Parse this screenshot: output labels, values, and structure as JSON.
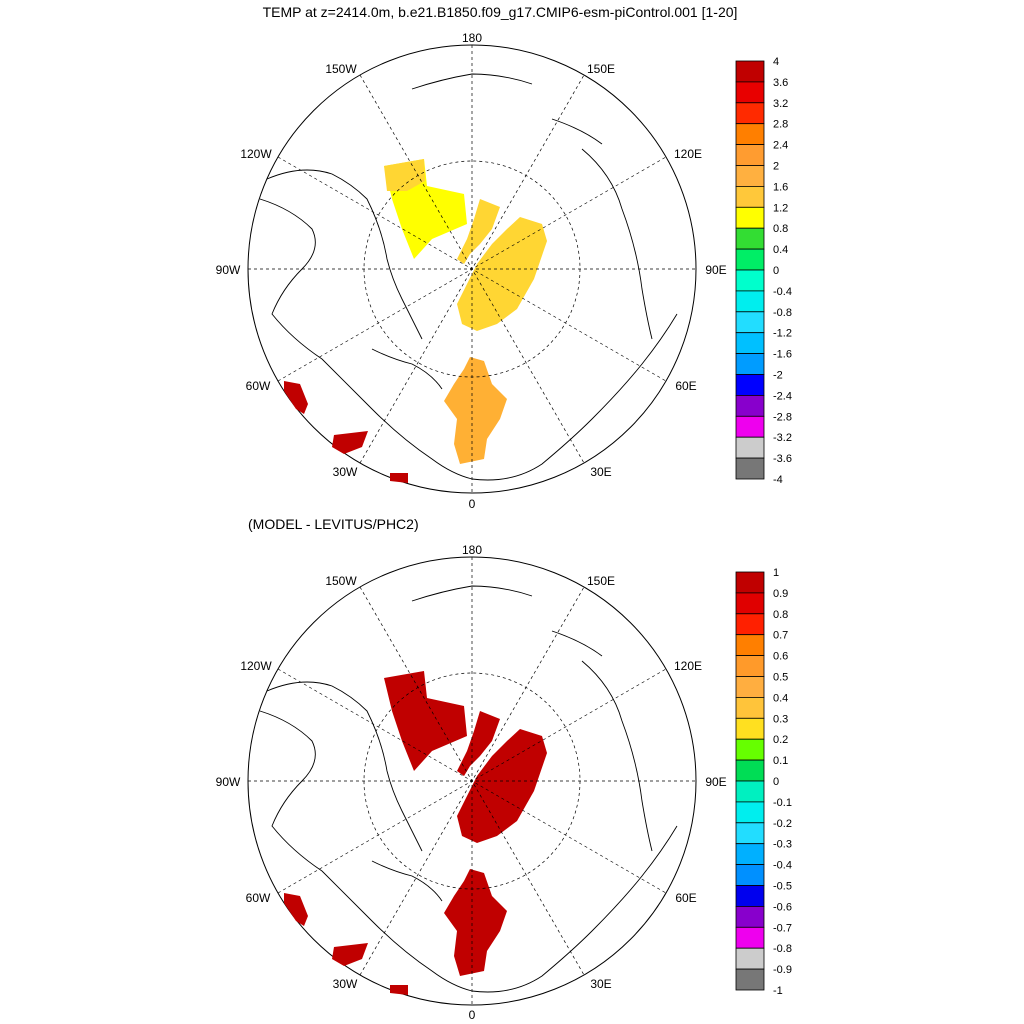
{
  "top_panel": {
    "title": "TEMP at z=2414.0m, b.e21.B1850.f09_g17.CMIP6-esm-piControl.001 [1-20]",
    "colorbar": {
      "labels": [
        "4",
        "3.6",
        "3.2",
        "2.8",
        "2.4",
        "2",
        "1.6",
        "1.2",
        "0.8",
        "0.4",
        "0",
        "-0.4",
        "-0.8",
        "-1.2",
        "-1.6",
        "-2",
        "-2.4",
        "-2.8",
        "-3.2",
        "-3.6",
        "-4"
      ],
      "colors": [
        "#c00000",
        "#e80000",
        "#ff2a00",
        "#ff7f00",
        "#ff9c30",
        "#ffb040",
        "#ffc83a",
        "#ffff00",
        "#33dd33",
        "#00ee66",
        "#00ffcc",
        "#00eeee",
        "#22ddff",
        "#00c0ff",
        "#009cff",
        "#0000ff",
        "#8800cc",
        "#ee00ee",
        "#cccccc",
        "#777777"
      ]
    }
  },
  "bottom_panel": {
    "title": "(MODEL - LEVITUS/PHC2)",
    "colorbar": {
      "labels": [
        "1",
        "0.9",
        "0.8",
        "0.7",
        "0.6",
        "0.5",
        "0.4",
        "0.3",
        "0.2",
        "0.1",
        "0",
        "-0.1",
        "-0.2",
        "-0.3",
        "-0.4",
        "-0.5",
        "-0.6",
        "-0.7",
        "-0.8",
        "-0.9",
        "-1"
      ],
      "colors": [
        "#c00000",
        "#e00000",
        "#ff2000",
        "#ff7f00",
        "#ff9a2a",
        "#ffae40",
        "#ffc43a",
        "#ffe020",
        "#66ff00",
        "#00dd55",
        "#00f0c0",
        "#00eeee",
        "#22ddff",
        "#00b0ff",
        "#0090ff",
        "#0000ee",
        "#8800cc",
        "#ee00ee",
        "#cccccc",
        "#777777"
      ]
    }
  },
  "map_labels": {
    "lat_lon": [
      "180",
      "150E",
      "120E",
      "90E",
      "60E",
      "30E",
      "0",
      "30W",
      "60W",
      "90W",
      "120W",
      "150W"
    ]
  },
  "data_fields": {
    "top": {
      "alaska_patch_value": 1.2,
      "siberia_patch_value": 1.3,
      "atlantic_patch_value": 1.8,
      "hot_spots_value": 4
    },
    "bottom": {
      "all_patches_value": 1
    }
  }
}
